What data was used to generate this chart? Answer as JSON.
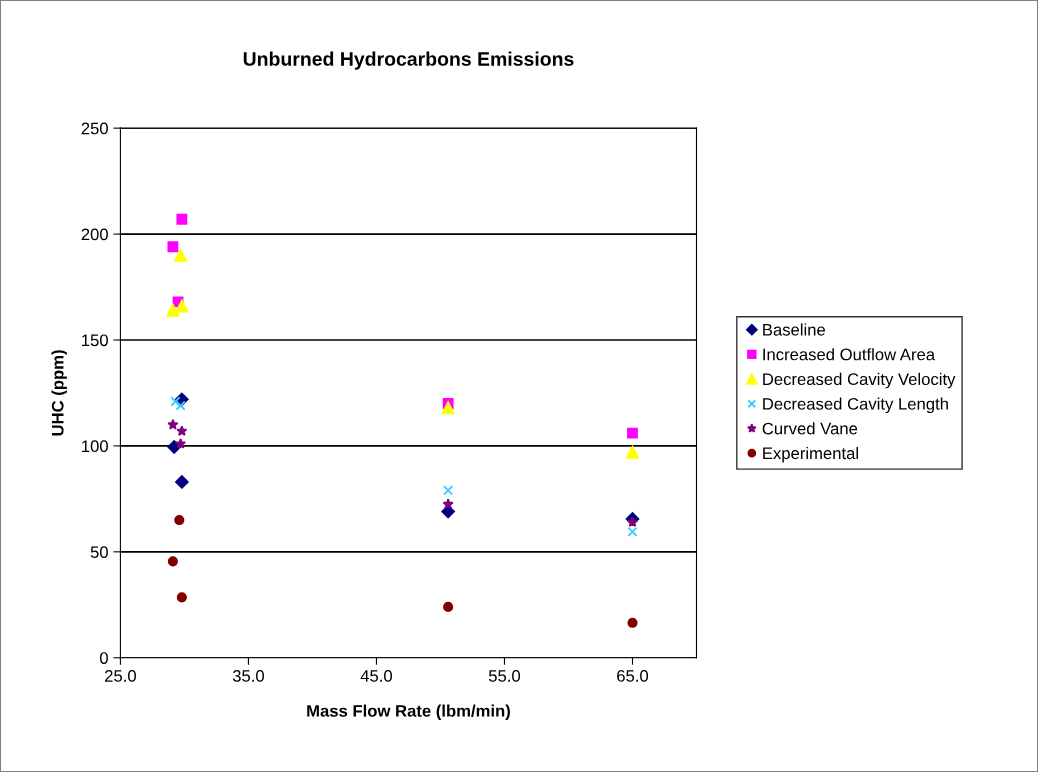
{
  "chart_data": {
    "type": "scatter",
    "title": "Unburned Hydrocarbons Emissions",
    "xlabel": "Mass Flow Rate (lbm/min)",
    "ylabel": "UHC (ppm)",
    "xlim": [
      25,
      70
    ],
    "xticks": [
      {
        "value": 25,
        "label": "25.0"
      },
      {
        "value": 35,
        "label": "35.0"
      },
      {
        "value": 45,
        "label": "45.0"
      },
      {
        "value": 55,
        "label": "55.0"
      },
      {
        "value": 65,
        "label": "65.0"
      }
    ],
    "ylim": [
      0,
      250
    ],
    "yticks": [
      0,
      50,
      100,
      150,
      200,
      250
    ],
    "grid": "y",
    "legend": "right",
    "series": [
      {
        "name": "Baseline",
        "color": "#000080",
        "marker": "diamond",
        "x": [
          29.2,
          29.8,
          29.8,
          50.6,
          65.0
        ],
        "values": [
          99.5,
          83,
          122,
          69,
          65.5
        ]
      },
      {
        "name": "Increased Outflow Area",
        "color": "#ff00ff",
        "marker": "square",
        "x": [
          29.1,
          29.5,
          29.8,
          50.6,
          65.0
        ],
        "values": [
          194,
          168,
          207,
          120,
          106
        ]
      },
      {
        "name": "Decreased Cavity Velocity",
        "color": "#ffff00",
        "marker": "triangle",
        "x": [
          29.1,
          29.8,
          29.7,
          50.6,
          65.0
        ],
        "values": [
          164,
          166,
          190,
          118,
          97
        ]
      },
      {
        "name": "Decreased Cavity Length",
        "color": "#33ccff",
        "marker": "cross",
        "x": [
          29.3,
          29.7,
          50.6,
          65.0
        ],
        "values": [
          121,
          119,
          79,
          59.5
        ]
      },
      {
        "name": "Curved Vane",
        "color": "#800080",
        "marker": "star",
        "x": [
          29.1,
          29.8,
          29.7,
          50.6,
          65.0
        ],
        "values": [
          110,
          107,
          101,
          72.5,
          64
        ]
      },
      {
        "name": "Experimental",
        "color": "#800000",
        "marker": "circle",
        "x": [
          29.6,
          29.1,
          29.8,
          50.6,
          65.0
        ],
        "values": [
          65,
          45.5,
          28.5,
          24,
          16.5
        ]
      }
    ]
  }
}
